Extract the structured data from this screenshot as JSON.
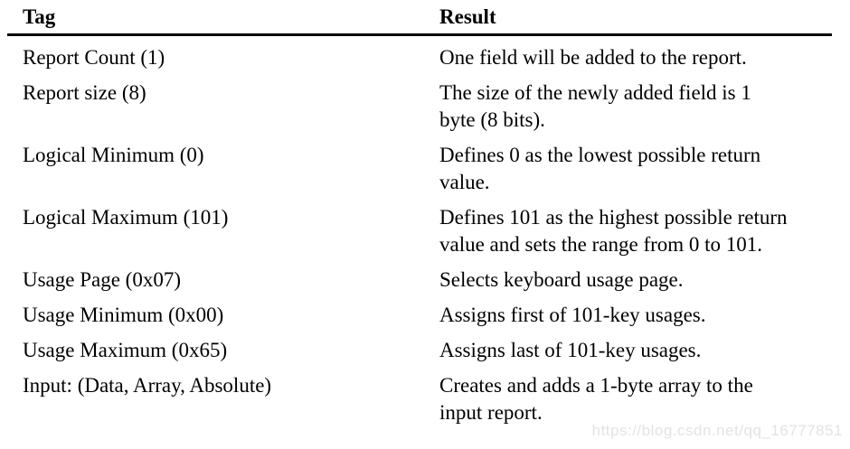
{
  "table": {
    "columns": [
      "Tag",
      "Result"
    ],
    "rows": [
      {
        "tag": "Report Count (1)",
        "result": "One field will be added to the report."
      },
      {
        "tag": "Report size (8)",
        "result": "The size of the newly added field is 1\nbyte (8 bits)."
      },
      {
        "tag": "Logical Minimum (0)",
        "result": "Defines 0 as the lowest possible return\nvalue."
      },
      {
        "tag": "Logical Maximum (101)",
        "result": "Defines 101 as the highest possible return\nvalue and sets the range from 0 to 101."
      },
      {
        "tag": "Usage Page (0x07)",
        "result": "Selects keyboard usage page."
      },
      {
        "tag": "Usage Minimum (0x00)",
        "result": "Assigns first of 101-key usages."
      },
      {
        "tag": "Usage Maximum (0x65)",
        "result": "Assigns last of 101-key usages."
      },
      {
        "tag": "Input: (Data, Array, Absolute)",
        "result": "Creates and adds a 1-byte array to the\ninput report."
      }
    ]
  },
  "watermark": "https://blog.csdn.net/qq_16777851",
  "colors": {
    "text": "#000000",
    "rule": "#000000",
    "watermark": "#e3e3e3",
    "background": "#ffffff"
  }
}
